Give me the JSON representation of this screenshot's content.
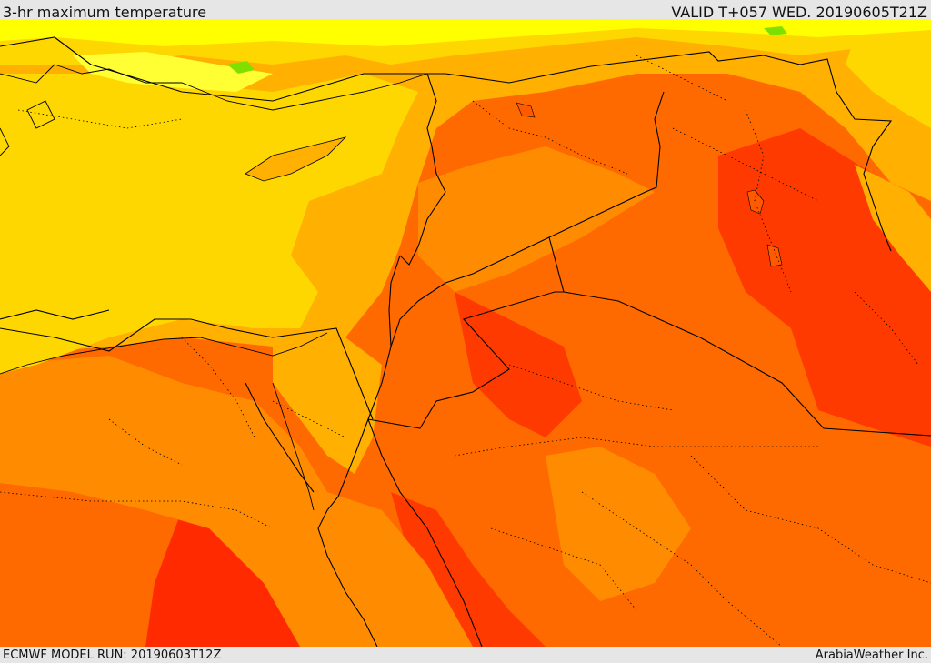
{
  "header": {
    "title": "3-hr maximum temperature",
    "valid_label": "VALID T+057 WED. 20190605T21Z"
  },
  "footer": {
    "model_run": "ECMWF MODEL RUN: 20190603T12Z",
    "credit": "ArabiaWeather Inc."
  },
  "colors": {
    "band_cool_yellow": "#ffff00",
    "band_yellow": "#ffd700",
    "band_light_orange": "#ffb000",
    "band_orange": "#ff8c00",
    "band_dark_orange": "#ff5f00",
    "band_red_orange": "#ff3a00",
    "band_red": "#ff1a00",
    "band_green": "#7fe000",
    "boundary_line": "#000000"
  }
}
